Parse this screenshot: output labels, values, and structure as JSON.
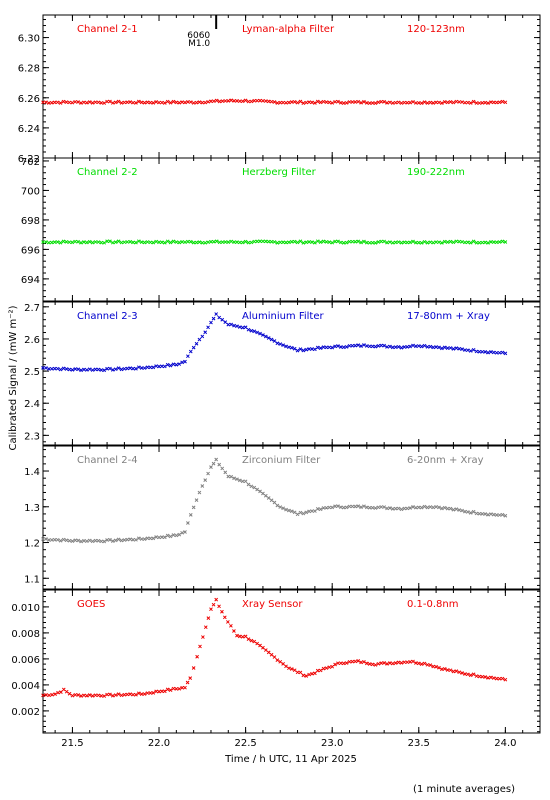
{
  "ylabel": "Calibrated Signal / (mW m⁻²)",
  "xlabel": "Time / h UTC, 11 Apr 2025",
  "footnote": "(1 minute averages)",
  "flare_marker": {
    "x": 22.33,
    "label_top": "6060",
    "label_bottom": "M1.0"
  },
  "colors": {
    "red": "#ee0000",
    "green": "#00dd00",
    "blue": "#0000cc",
    "gray": "#808080",
    "axis": "#000000"
  },
  "chart_data": {
    "type": "scatter",
    "xlim": [
      21.33,
      24.2
    ],
    "xticks": [
      21.5,
      22.0,
      22.5,
      23.0,
      23.5,
      24.0
    ],
    "xtick_labels": [
      "21.5",
      "22.0",
      "22.5",
      "23.0",
      "23.5",
      "24.0"
    ],
    "panels": [
      {
        "channel": "Channel 2-1",
        "filter": "Lyman-alpha Filter",
        "band": "120-123nm",
        "color": "#ee0000",
        "ylim": [
          6.22,
          6.315
        ],
        "yticks": [
          6.22,
          6.24,
          6.26,
          6.28,
          6.3
        ],
        "ytick_labels": [
          "6.22",
          "6.24",
          "6.26",
          "6.28",
          "6.30"
        ],
        "x": [
          21.33,
          21.6,
          21.9,
          22.2,
          22.4,
          22.5,
          22.7,
          23.0,
          23.5,
          24.0
        ],
        "y": [
          6.257,
          6.257,
          6.257,
          6.257,
          6.258,
          6.258,
          6.257,
          6.257,
          6.257,
          6.257
        ]
      },
      {
        "channel": "Channel 2-2",
        "filter": "Herzberg Filter",
        "band": "190-222nm",
        "color": "#00dd00",
        "ylim": [
          692.5,
          702.2
        ],
        "yticks": [
          694,
          696,
          698,
          700,
          702
        ],
        "ytick_labels": [
          "694",
          "696",
          "698",
          "700",
          "702"
        ],
        "x": [
          21.33,
          21.6,
          21.9,
          22.2,
          22.5,
          22.8,
          23.1,
          23.5,
          24.0
        ],
        "y": [
          696.5,
          696.5,
          696.5,
          696.5,
          696.5,
          696.5,
          696.5,
          696.5,
          696.5
        ]
      },
      {
        "channel": "Channel 2-3",
        "filter": "Aluminium Filter",
        "band": "17-80nm + Xray",
        "color": "#0000cc",
        "ylim": [
          2.27,
          2.715
        ],
        "yticks": [
          2.3,
          2.4,
          2.5,
          2.6,
          2.7
        ],
        "ytick_labels": [
          "2.3",
          "2.4",
          "2.5",
          "2.6",
          "2.7"
        ],
        "x": [
          21.33,
          21.5,
          21.7,
          21.9,
          22.0,
          22.1,
          22.15,
          22.2,
          22.25,
          22.3,
          22.33,
          22.4,
          22.5,
          22.6,
          22.7,
          22.8,
          22.9,
          23.0,
          23.2,
          23.4,
          23.5,
          23.6,
          23.8,
          24.0
        ],
        "y": [
          2.51,
          2.505,
          2.505,
          2.51,
          2.515,
          2.52,
          2.53,
          2.575,
          2.61,
          2.65,
          2.675,
          2.645,
          2.635,
          2.61,
          2.585,
          2.565,
          2.57,
          2.575,
          2.58,
          2.575,
          2.58,
          2.575,
          2.565,
          2.555
        ]
      },
      {
        "channel": "Channel 2-4",
        "filter": "Zirconium Filter",
        "band": "6-20nm + Xray",
        "color": "#808080",
        "ylim": [
          1.07,
          1.47
        ],
        "yticks": [
          1.1,
          1.2,
          1.3,
          1.4
        ],
        "ytick_labels": [
          "1.1",
          "1.2",
          "1.3",
          "1.4"
        ],
        "x": [
          21.33,
          21.5,
          21.7,
          21.9,
          22.0,
          22.1,
          22.15,
          22.2,
          22.25,
          22.3,
          22.33,
          22.4,
          22.5,
          22.6,
          22.7,
          22.8,
          22.9,
          23.0,
          23.2,
          23.4,
          23.5,
          23.6,
          23.8,
          24.0
        ],
        "y": [
          1.21,
          1.205,
          1.205,
          1.21,
          1.215,
          1.22,
          1.23,
          1.3,
          1.36,
          1.41,
          1.43,
          1.385,
          1.37,
          1.335,
          1.3,
          1.28,
          1.29,
          1.3,
          1.3,
          1.295,
          1.3,
          1.3,
          1.285,
          1.275
        ]
      },
      {
        "channel": "GOES",
        "filter": "Xray Sensor",
        "band": "0.1-0.8nm",
        "color": "#ee0000",
        "ylim": [
          0.0003,
          0.0113
        ],
        "yticks": [
          0.002,
          0.004,
          0.006,
          0.008,
          0.01
        ],
        "ytick_labels": [
          "0.002",
          "0.004",
          "0.006",
          "0.008",
          "0.010"
        ],
        "x": [
          21.33,
          21.4,
          21.45,
          21.5,
          21.7,
          21.9,
          22.0,
          22.1,
          22.15,
          22.18,
          22.22,
          22.27,
          22.3,
          22.33,
          22.38,
          22.45,
          22.5,
          22.55,
          22.65,
          22.75,
          22.85,
          22.95,
          23.05,
          23.15,
          23.25,
          23.35,
          23.45,
          23.55,
          23.65,
          23.75,
          23.85,
          24.0
        ],
        "y": [
          0.0032,
          0.0033,
          0.0036,
          0.0032,
          0.0032,
          0.0033,
          0.0035,
          0.0037,
          0.0038,
          0.0045,
          0.0062,
          0.0085,
          0.0098,
          0.0105,
          0.0092,
          0.0078,
          0.0077,
          0.0073,
          0.0063,
          0.0053,
          0.0047,
          0.0052,
          0.0057,
          0.0058,
          0.0056,
          0.0057,
          0.0058,
          0.0056,
          0.0052,
          0.0049,
          0.0047,
          0.0044
        ]
      }
    ]
  }
}
